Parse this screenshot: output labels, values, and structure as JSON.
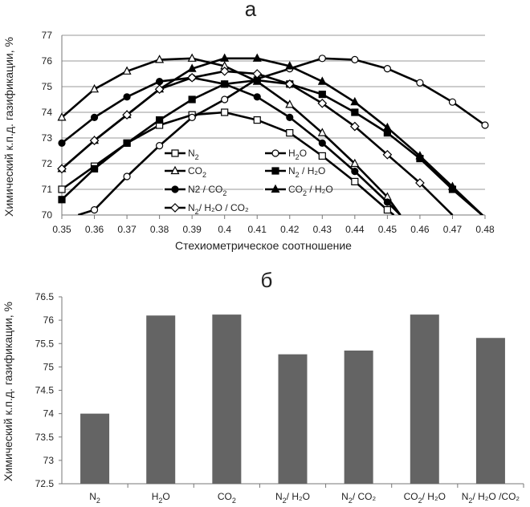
{
  "chart_data": [
    {
      "panel": "а",
      "type": "line",
      "xlabel": "Стехиометрическое соотношение",
      "ylabel": "Химический к.п.д. газификации, %",
      "xlim": [
        0.35,
        0.48
      ],
      "ylim": [
        70,
        77
      ],
      "x_ticks": [
        "0.35",
        "0.36",
        "0.37",
        "0.38",
        "0.39",
        "0.4",
        "0.41",
        "0.42",
        "0.43",
        "0.44",
        "0.45",
        "0.46",
        "0.47",
        "0.48"
      ],
      "y_ticks": [
        "70",
        "71",
        "72",
        "73",
        "74",
        "75",
        "76",
        "77"
      ],
      "legend_position": "lower-center",
      "series": [
        {
          "name": "N2",
          "label_main": "N",
          "label_sub": "2",
          "label_rest": "",
          "marker": "square-open",
          "x": [
            0.35,
            0.36,
            0.37,
            0.38,
            0.39,
            0.4,
            0.41,
            0.42,
            0.43,
            0.44,
            0.45,
            0.452
          ],
          "y": [
            71.0,
            71.9,
            72.8,
            73.5,
            73.9,
            74.0,
            73.7,
            73.2,
            72.3,
            71.3,
            70.2,
            70.0
          ]
        },
        {
          "name": "H2O",
          "label_main": "H",
          "label_sub": "2",
          "label_rest": "O",
          "marker": "circle-open",
          "x": [
            0.355,
            0.36,
            0.37,
            0.38,
            0.39,
            0.4,
            0.41,
            0.42,
            0.43,
            0.44,
            0.45,
            0.46,
            0.47,
            0.48
          ],
          "y": [
            70.0,
            70.2,
            71.5,
            72.7,
            73.8,
            74.5,
            75.3,
            75.7,
            76.1,
            76.05,
            75.7,
            75.15,
            74.4,
            73.5
          ]
        },
        {
          "name": "CO2",
          "label_main": "CO",
          "label_sub": "2",
          "label_rest": "",
          "marker": "triangle-open",
          "x": [
            0.35,
            0.36,
            0.37,
            0.38,
            0.39,
            0.4,
            0.41,
            0.42,
            0.43,
            0.44,
            0.45,
            0.454
          ],
          "y": [
            73.8,
            74.9,
            75.6,
            76.05,
            76.1,
            75.8,
            75.2,
            74.3,
            73.2,
            72.0,
            70.7,
            70.0
          ]
        },
        {
          "name": "N2 / H2O",
          "label_main": "N",
          "label_sub": "2",
          "label_rest": " / H₂O",
          "marker": "square-filled",
          "x": [
            0.35,
            0.36,
            0.37,
            0.38,
            0.39,
            0.4,
            0.41,
            0.42,
            0.43,
            0.44,
            0.45,
            0.46,
            0.47,
            0.48
          ],
          "y": [
            70.6,
            71.8,
            72.8,
            73.7,
            74.5,
            75.1,
            75.25,
            75.1,
            74.7,
            74.0,
            73.2,
            72.2,
            71.0,
            69.9
          ]
        },
        {
          "name": "N2 / CO2",
          "label_main": "N2 / CO",
          "label_sub": "2",
          "label_rest": "",
          "marker": "circle-filled",
          "x": [
            0.35,
            0.36,
            0.37,
            0.38,
            0.39,
            0.4,
            0.41,
            0.42,
            0.43,
            0.44,
            0.45,
            0.454
          ],
          "y": [
            72.8,
            73.8,
            74.6,
            75.2,
            75.35,
            75.1,
            74.6,
            73.8,
            72.8,
            71.7,
            70.5,
            70.0
          ]
        },
        {
          "name": "CO2 / H2O",
          "label_main": "CO",
          "label_sub": "2",
          "label_rest": " / H₂O",
          "marker": "triangle-filled",
          "x": [
            0.35,
            0.36,
            0.37,
            0.38,
            0.39,
            0.4,
            0.41,
            0.42,
            0.43,
            0.44,
            0.45,
            0.46,
            0.47,
            0.48
          ],
          "y": [
            71.8,
            72.9,
            73.9,
            74.9,
            75.7,
            76.1,
            76.1,
            75.8,
            75.2,
            74.4,
            73.4,
            72.3,
            71.1,
            69.9
          ]
        },
        {
          "name": "N2/ H2O / CO2",
          "label_main": "N",
          "label_sub": "2",
          "label_rest": "/ H₂O / CO₂",
          "marker": "diamond-open",
          "x": [
            0.35,
            0.36,
            0.37,
            0.38,
            0.39,
            0.4,
            0.41,
            0.42,
            0.43,
            0.44,
            0.45,
            0.46,
            0.47
          ],
          "y": [
            71.8,
            72.9,
            73.9,
            74.9,
            75.35,
            75.6,
            75.5,
            75.1,
            74.35,
            73.45,
            72.35,
            71.25,
            70.0
          ]
        }
      ]
    },
    {
      "panel": "б",
      "type": "bar",
      "ylabel": "Химический к.п.д. газификации, %",
      "ylim": [
        72.5,
        76.5
      ],
      "y_ticks": [
        "72.5",
        "73",
        "73.5",
        "74",
        "74.5",
        "75",
        "75.5",
        "76",
        "76.5"
      ],
      "bar_color": "#646464",
      "categories": [
        {
          "main": "N",
          "sub": "2",
          "rest": ""
        },
        {
          "main": "H",
          "sub": "2",
          "rest": "O"
        },
        {
          "main": "CO",
          "sub": "2",
          "rest": ""
        },
        {
          "main": "N",
          "sub": "2",
          "rest": "/ H₂O"
        },
        {
          "main": "N",
          "sub": "2",
          "rest": "/ CO₂"
        },
        {
          "main": "CO",
          "sub": "2",
          "rest": "/ H₂O"
        },
        {
          "main": "N",
          "sub": "2",
          "rest": "/ H₂O /CO₂"
        }
      ],
      "values": [
        74.0,
        76.1,
        76.12,
        75.27,
        75.35,
        76.12,
        75.62
      ]
    }
  ]
}
